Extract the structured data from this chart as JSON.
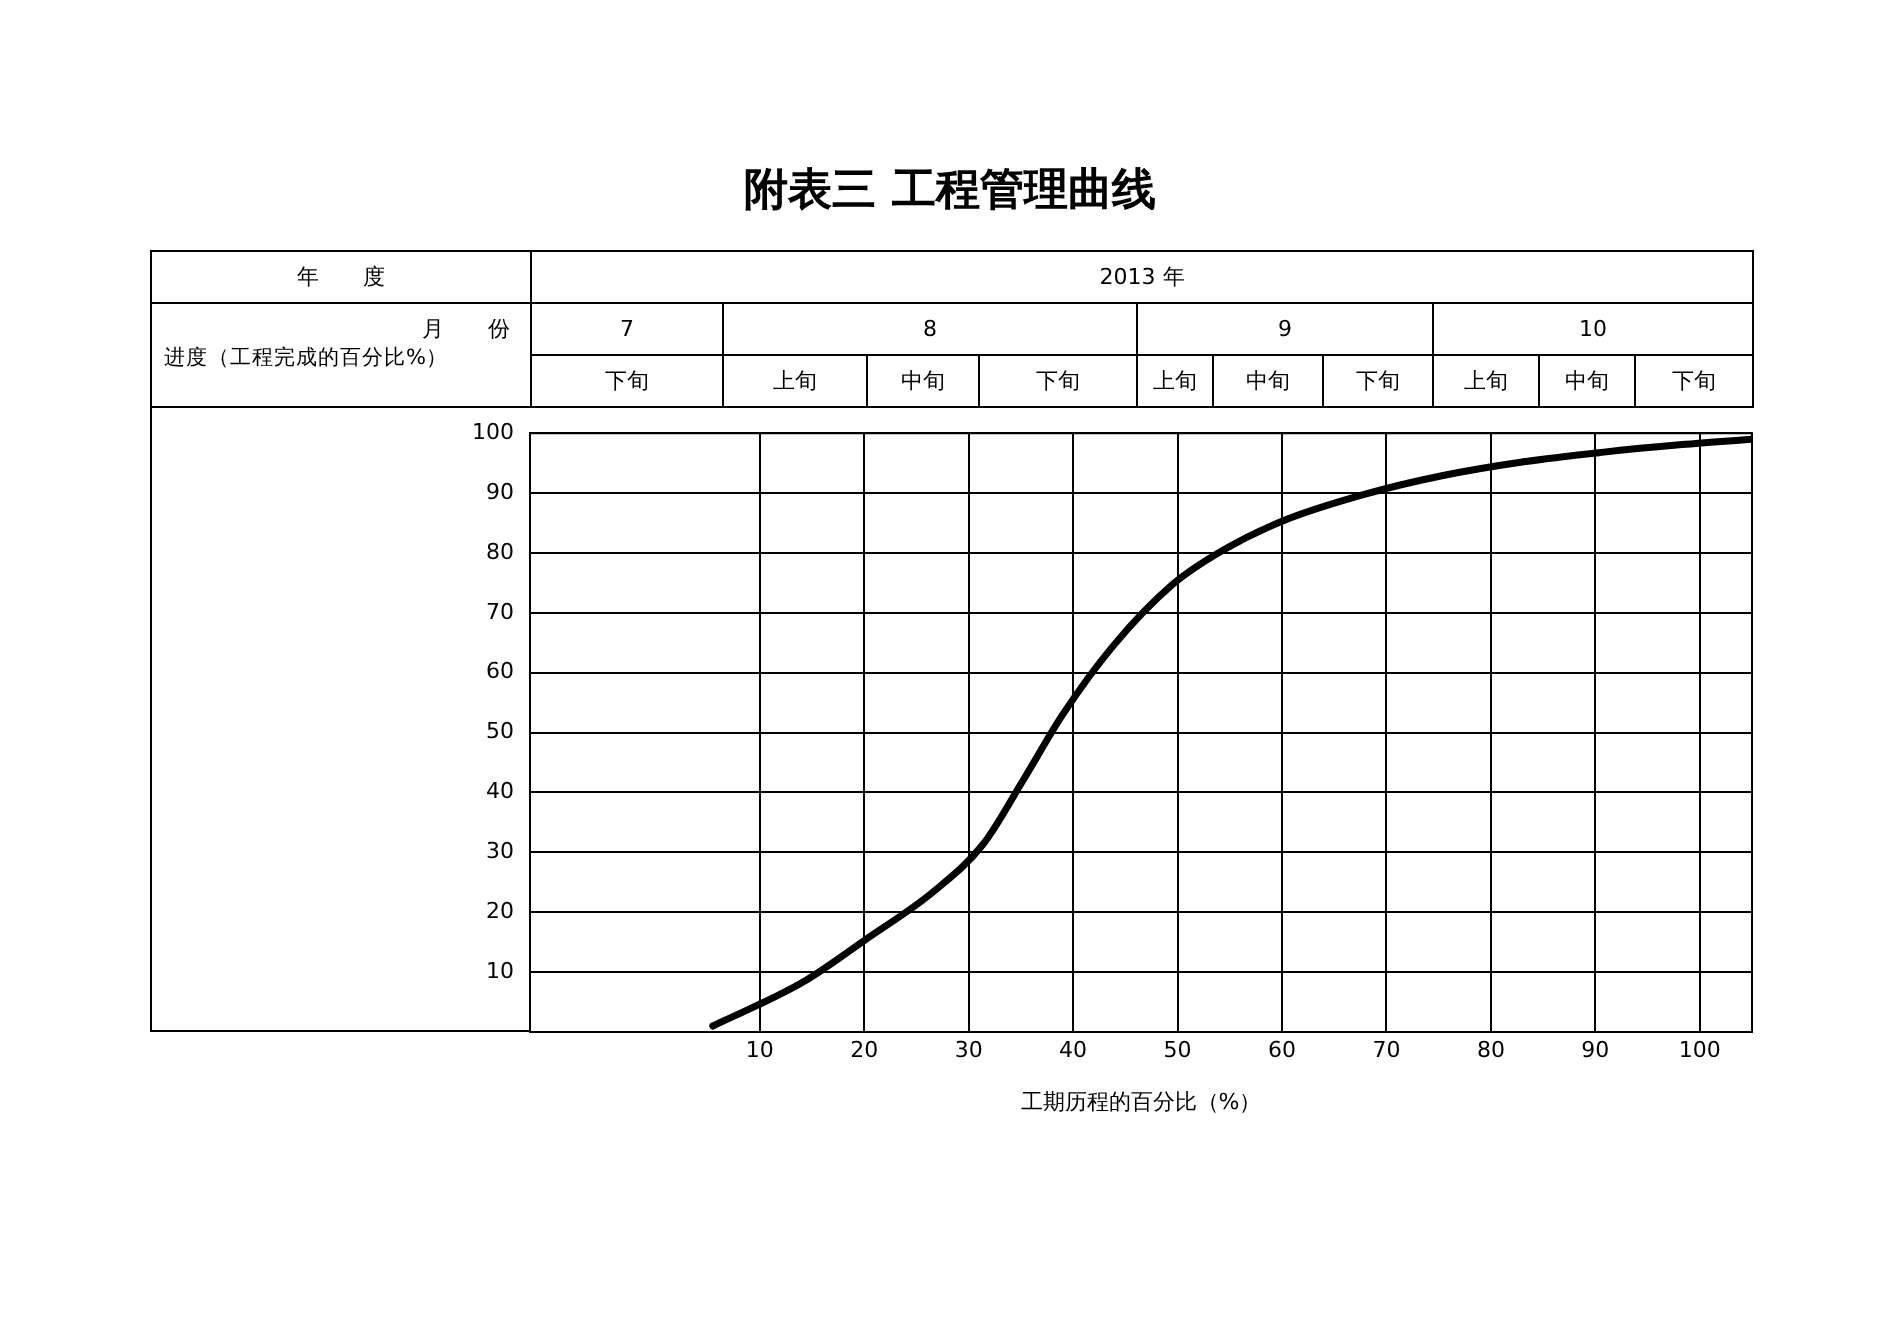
{
  "chart_data": {
    "type": "line",
    "title": "附表三  工程管理曲线",
    "xlabel": "工期历程的百分比（%）",
    "ylabel": "进度（工程完成的百分比%）",
    "annotations": [
      "年　　度",
      "2013 年",
      "月　　份",
      "7",
      "8",
      "9",
      "10",
      "下旬",
      "上旬",
      "中旬",
      "下旬",
      "上旬",
      "中旬",
      "下旬",
      "上旬",
      "中旬",
      "下旬"
    ],
    "series": [
      {
        "color": "#000000",
        "x": [
          5.5,
          14.1,
          20.1,
          26.6,
          31.4,
          35.2,
          39,
          43.8,
          49.5,
          54.3,
          60,
          67.7,
          75.3,
          83,
          90.6,
          98.3,
          105
        ],
        "values": [
          1,
          8.3,
          15.4,
          23.4,
          31.4,
          42,
          53,
          64.4,
          74.7,
          80.4,
          85.3,
          89.7,
          92.9,
          95.2,
          96.8,
          98.1,
          99
        ]
      }
    ],
    "xlim": [
      -12,
      105
    ],
    "xticks": [
      10,
      20,
      30,
      40,
      50,
      60,
      70,
      80,
      90,
      100
    ],
    "ylim": [
      0,
      100
    ],
    "yticks": [
      10,
      20,
      30,
      40,
      50,
      60,
      70,
      80,
      90,
      100
    ],
    "grid": true,
    "legend": false,
    "marker": "none",
    "line_style": "solid"
  }
}
